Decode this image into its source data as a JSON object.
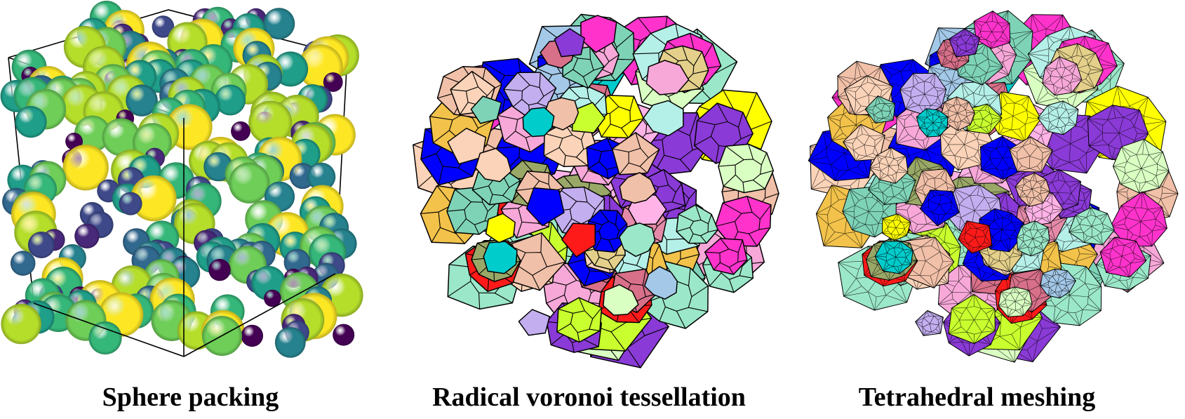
{
  "panels": [
    {
      "caption": "Sphere packing",
      "visual": "sphere-packing"
    },
    {
      "caption": "Radical voronoi tessellation",
      "visual": "voronoi-cells"
    },
    {
      "caption": "Tetrahedral meshing",
      "visual": "tetrahedral-mesh"
    }
  ],
  "colors": {
    "sphere_palette": [
      "#fde725",
      "#b5de2b",
      "#6ece58",
      "#35b779",
      "#1f9e89",
      "#26828e",
      "#31688e",
      "#3e4989",
      "#482878",
      "#440154"
    ],
    "cell_palette": [
      "#f7a8d8",
      "#fbd3b8",
      "#f1c0a8",
      "#c3aef0",
      "#9be7c9",
      "#f2c24a",
      "#7ed3b7",
      "#a3c8e8",
      "#e48aa8",
      "#9aa867",
      "#ff33cc",
      "#0000ff",
      "#ff1a1a",
      "#c9ff2e",
      "#00cccc",
      "#d8708a",
      "#e4d08a",
      "#b5f0e8",
      "#8a3ad6",
      "#ffff00",
      "#ffb3e6",
      "#d9ffc2"
    ],
    "edge": "#000000"
  }
}
